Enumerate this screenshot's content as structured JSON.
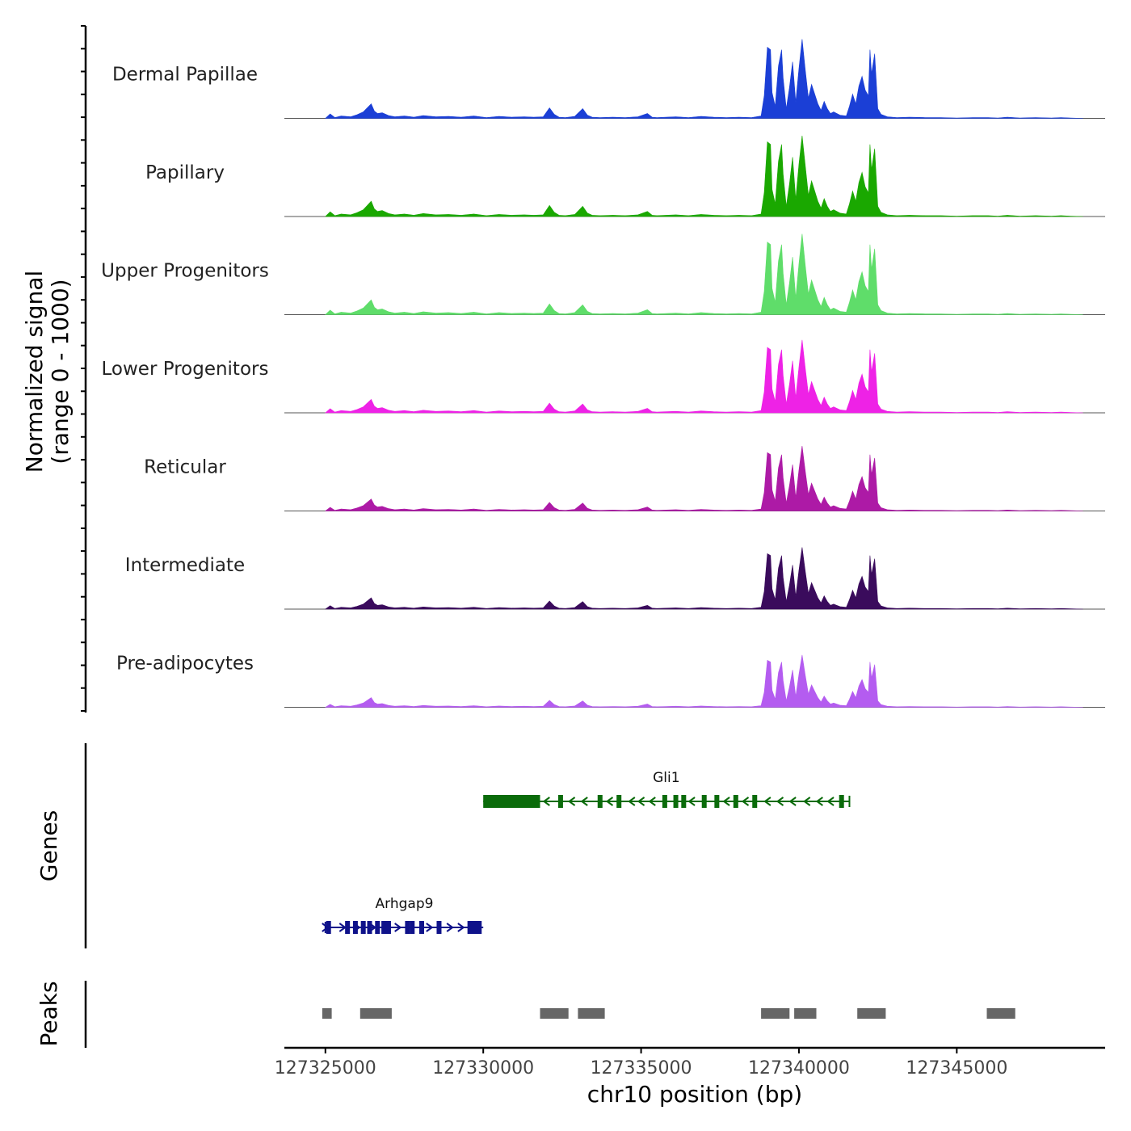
{
  "chart_data": {
    "type": "area",
    "chromosome": "chr10",
    "xlim": [
      127323700,
      127349700
    ],
    "ylim": [
      0,
      1000
    ],
    "xlabel": "chr10 position (bp)",
    "ylabel_line1": "Normalized signal",
    "ylabel_line2": "(range 0 - 1000)",
    "x_ticks": [
      127325000,
      127330000,
      127335000,
      127340000,
      127345000
    ],
    "x_tick_labels": [
      "127325000",
      "127330000",
      "127335000",
      "127340000",
      "127345000"
    ],
    "tracks": [
      {
        "name": "Dermal Papillae",
        "color": "#1b3fd6",
        "scale": 1.0
      },
      {
        "name": "Papillary",
        "color": "#1aa800",
        "scale": 1.05
      },
      {
        "name": "Upper Progenitors",
        "color": "#5fdd6a",
        "scale": 1.02
      },
      {
        "name": "Lower Progenitors",
        "color": "#ee22e6",
        "scale": 0.92
      },
      {
        "name": "Reticular",
        "color": "#ad1aa6",
        "scale": 0.82
      },
      {
        "name": "Intermediate",
        "color": "#3a0b5c",
        "scale": 0.78
      },
      {
        "name": "Pre-adipocytes",
        "color": "#b45cf0",
        "scale": 0.66
      }
    ],
    "signal_x": [
      127325000,
      127325150,
      127325300,
      127325500,
      127325800,
      127326000,
      127326200,
      127326450,
      127326550,
      127326650,
      127326800,
      127327000,
      127327200,
      127327500,
      127327800,
      127328100,
      127328500,
      127328900,
      127329300,
      127329700,
      127330100,
      127330500,
      127330900,
      127331300,
      127331600,
      127331900,
      127332100,
      127332250,
      127332400,
      127332600,
      127332900,
      127333150,
      127333300,
      127333450,
      127333700,
      127334100,
      127334500,
      127334900,
      127335200,
      127335350,
      127335500,
      127335800,
      127336100,
      127336500,
      127336900,
      127337300,
      127337700,
      127338100,
      127338500,
      127338800,
      127338900,
      127339000,
      127339100,
      127339150,
      127339250,
      127339350,
      127339450,
      127339500,
      127339600,
      127339700,
      127339800,
      127339900,
      127340000,
      127340100,
      127340200,
      127340300,
      127340400,
      127340500,
      127340600,
      127340700,
      127340800,
      127340900,
      127341000,
      127341100,
      127341300,
      127341500,
      127341600,
      127341700,
      127341800,
      127341900,
      127342000,
      127342100,
      127342200,
      127342250,
      127342300,
      127342400,
      127342500,
      127342600,
      127342800,
      127343100,
      127343500,
      127344000,
      127344500,
      127345000,
      127345500,
      127346000,
      127346300,
      127346600,
      127347000,
      127347500,
      127348000,
      127348300,
      127348600,
      127349000
    ],
    "signal_y": [
      0,
      55,
      10,
      30,
      20,
      45,
      80,
      180,
      90,
      60,
      70,
      35,
      20,
      30,
      15,
      35,
      20,
      25,
      15,
      30,
      10,
      25,
      15,
      20,
      15,
      20,
      130,
      50,
      15,
      10,
      25,
      120,
      40,
      15,
      10,
      15,
      10,
      20,
      60,
      15,
      10,
      15,
      20,
      10,
      25,
      15,
      10,
      15,
      10,
      30,
      280,
      880,
      850,
      320,
      150,
      650,
      850,
      500,
      120,
      380,
      700,
      200,
      620,
      980,
      600,
      250,
      420,
      300,
      180,
      100,
      210,
      120,
      60,
      80,
      40,
      30,
      150,
      300,
      180,
      400,
      520,
      350,
      280,
      850,
      550,
      800,
      120,
      50,
      20,
      10,
      15,
      10,
      10,
      5,
      10,
      10,
      5,
      15,
      5,
      10,
      5,
      10,
      5,
      0
    ],
    "genes": [
      {
        "name": "Arhgap9",
        "strand": "+",
        "color": "#0f128a",
        "start": 127325000,
        "end": 127330000,
        "utr": [
          [
            127329500,
            127329950
          ]
        ],
        "exons": [
          127325100,
          127325700,
          127325950,
          127326200,
          127326400,
          127326650,
          127326850,
          127327000,
          127327600,
          127327750,
          127328050,
          127328600
        ],
        "arrows": [
          127325000,
          127325550,
          127326000,
          127326500,
          127327300,
          127328300,
          127328950,
          127329300
        ]
      },
      {
        "name": "Gli1",
        "strand": "-",
        "color": "#0a6b0a",
        "start": 127330000,
        "end": 127341600,
        "utr": [
          [
            127330000,
            127331800
          ]
        ],
        "exons": [
          127332450,
          127333700,
          127334300,
          127335750,
          127336100,
          127336350,
          127337000,
          127337400,
          127338000,
          127338600,
          127341350
        ],
        "arrows": [
          127332000,
          127332800,
          127333200,
          127334000,
          127334700,
          127335000,
          127335350,
          127336600,
          127337700,
          127338300,
          127339000,
          127339400,
          127339800,
          127340250,
          127340650,
          127341000
        ]
      }
    ],
    "peaks": [
      [
        127324900,
        127325200
      ],
      [
        127326100,
        127327100
      ],
      [
        127331800,
        127332700
      ],
      [
        127333000,
        127333850
      ],
      [
        127338800,
        127339700
      ],
      [
        127339850,
        127340550
      ],
      [
        127341850,
        127342750
      ],
      [
        127345950,
        127346850
      ]
    ],
    "panel_labels": {
      "genes": "Genes",
      "peaks": "Peaks"
    }
  }
}
